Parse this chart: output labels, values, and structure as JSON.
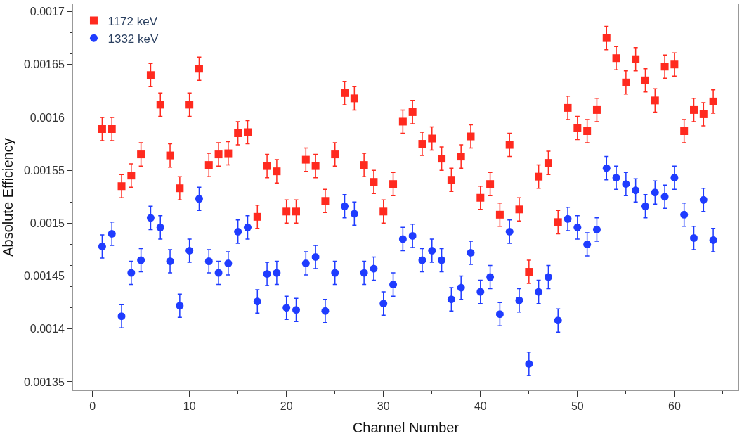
{
  "chart_data": {
    "type": "scatter",
    "xlabel": "Channel Number",
    "ylabel": "Absolute Efficiency",
    "x": [
      1,
      2,
      3,
      4,
      5,
      6,
      7,
      8,
      9,
      10,
      11,
      12,
      13,
      14,
      15,
      16,
      17,
      18,
      19,
      20,
      21,
      22,
      23,
      24,
      25,
      26,
      27,
      28,
      29,
      30,
      31,
      32,
      33,
      34,
      35,
      36,
      37,
      38,
      39,
      40,
      41,
      42,
      43,
      44,
      45,
      46,
      47,
      48,
      49,
      50,
      51,
      52,
      53,
      54,
      55,
      56,
      57,
      58,
      59,
      60,
      61,
      62,
      63,
      64
    ],
    "series": [
      {
        "name": "1172 keV",
        "color": "#ff2a1f",
        "marker": "square",
        "errors": [
          1.1e-05,
          1.1e-05,
          1.1e-05,
          1.1e-05,
          1.1e-05,
          1.1e-05,
          1.1e-05,
          1.1e-05,
          1.1e-05,
          1.1e-05,
          1.1e-05,
          1.1e-05,
          1.1e-05,
          1.1e-05,
          1.1e-05,
          1.1e-05,
          1.1e-05,
          1.1e-05,
          1.1e-05,
          1.1e-05,
          1.1e-05,
          1.1e-05,
          1.1e-05,
          1.1e-05,
          1.1e-05,
          1.1e-05,
          1.1e-05,
          1.1e-05,
          1.1e-05,
          1.1e-05,
          1.1e-05,
          1.1e-05,
          1.1e-05,
          1.1e-05,
          1.1e-05,
          1.1e-05,
          1.1e-05,
          1.1e-05,
          1.1e-05,
          1.1e-05,
          1.1e-05,
          1.1e-05,
          1.1e-05,
          1.1e-05,
          1.1e-05,
          1.1e-05,
          1.1e-05,
          1.1e-05,
          1.1e-05,
          1.1e-05,
          1.1e-05,
          1.1e-05,
          1.1e-05,
          1.1e-05,
          1.1e-05,
          1.1e-05,
          1.1e-05,
          1.1e-05,
          1.1e-05,
          1.1e-05,
          1.1e-05,
          1.1e-05,
          1.1e-05,
          1.1e-05
        ],
        "values": [
          0.001589,
          0.001589,
          0.001535,
          0.001545,
          0.001565,
          0.00164,
          0.001612,
          0.001564,
          0.001533,
          0.001612,
          0.001646,
          0.001555,
          0.001565,
          0.001566,
          0.001585,
          0.001586,
          0.001506,
          0.001554,
          0.001549,
          0.001511,
          0.001511,
          0.00156,
          0.001554,
          0.001521,
          0.001565,
          0.001623,
          0.001618,
          0.001555,
          0.001539,
          0.001511,
          0.001537,
          0.001596,
          0.001605,
          0.001575,
          0.00158,
          0.001561,
          0.001541,
          0.001563,
          0.001582,
          0.001524,
          0.001537,
          0.001508,
          0.001574,
          0.001513,
          0.001454,
          0.001544,
          0.001557,
          0.001501,
          0.001609,
          0.00159,
          0.001587,
          0.001607,
          0.001675,
          0.001656,
          0.001633,
          0.001655,
          0.001635,
          0.001616,
          0.001648,
          0.00165,
          0.001587,
          0.001607,
          0.001603,
          0.001615
        ]
      },
      {
        "name": "1332 keV",
        "color": "#1f3cff",
        "marker": "circle",
        "errors": [
          1.1e-05,
          1.1e-05,
          1.1e-05,
          1.1e-05,
          1.1e-05,
          1.1e-05,
          1.1e-05,
          1.1e-05,
          1.1e-05,
          1.1e-05,
          1.1e-05,
          1.1e-05,
          1.1e-05,
          1.1e-05,
          1.1e-05,
          1.1e-05,
          1.1e-05,
          1.1e-05,
          1.1e-05,
          1.1e-05,
          1.1e-05,
          1.1e-05,
          1.1e-05,
          1.1e-05,
          1.1e-05,
          1.1e-05,
          1.1e-05,
          1.1e-05,
          1.1e-05,
          1.1e-05,
          1.1e-05,
          1.1e-05,
          1.1e-05,
          1.1e-05,
          1.1e-05,
          1.1e-05,
          1.1e-05,
          1.1e-05,
          1.1e-05,
          1.1e-05,
          1.1e-05,
          1.1e-05,
          1.1e-05,
          1.1e-05,
          1.1e-05,
          1.1e-05,
          1.1e-05,
          1.1e-05,
          1.1e-05,
          1.1e-05,
          1.1e-05,
          1.1e-05,
          1.1e-05,
          1.1e-05,
          1.1e-05,
          1.1e-05,
          1.1e-05,
          1.1e-05,
          1.1e-05,
          1.1e-05,
          1.1e-05,
          1.1e-05,
          1.1e-05,
          1.1e-05
        ],
        "values": [
          0.001478,
          0.00149,
          0.001412,
          0.001453,
          0.001465,
          0.001505,
          0.001496,
          0.001464,
          0.001422,
          0.001474,
          0.001523,
          0.001464,
          0.001453,
          0.001462,
          0.001492,
          0.001496,
          0.001426,
          0.001452,
          0.001453,
          0.00142,
          0.001418,
          0.001462,
          0.001468,
          0.001417,
          0.001453,
          0.001516,
          0.001509,
          0.001453,
          0.001457,
          0.001424,
          0.001442,
          0.001485,
          0.001488,
          0.001465,
          0.001474,
          0.001465,
          0.001428,
          0.001439,
          0.001472,
          0.001435,
          0.001449,
          0.001414,
          0.001492,
          0.001427,
          0.001367,
          0.001435,
          0.001449,
          0.001408,
          0.001504,
          0.001496,
          0.00148,
          0.001494,
          0.001552,
          0.001543,
          0.001537,
          0.001531,
          0.001516,
          0.001529,
          0.001525,
          0.001543,
          0.001508,
          0.001486,
          0.001522,
          0.001484
        ]
      }
    ],
    "xlim": [
      -2,
      66.6
    ],
    "xticks": [
      0,
      10,
      20,
      30,
      40,
      50,
      60
    ],
    "ylim": [
      0.001342,
      0.001707
    ],
    "yticks": [
      0.00135,
      0.0014,
      0.00145,
      0.0015,
      0.00155,
      0.0016,
      0.00165,
      0.0017
    ],
    "legend": "top left"
  }
}
